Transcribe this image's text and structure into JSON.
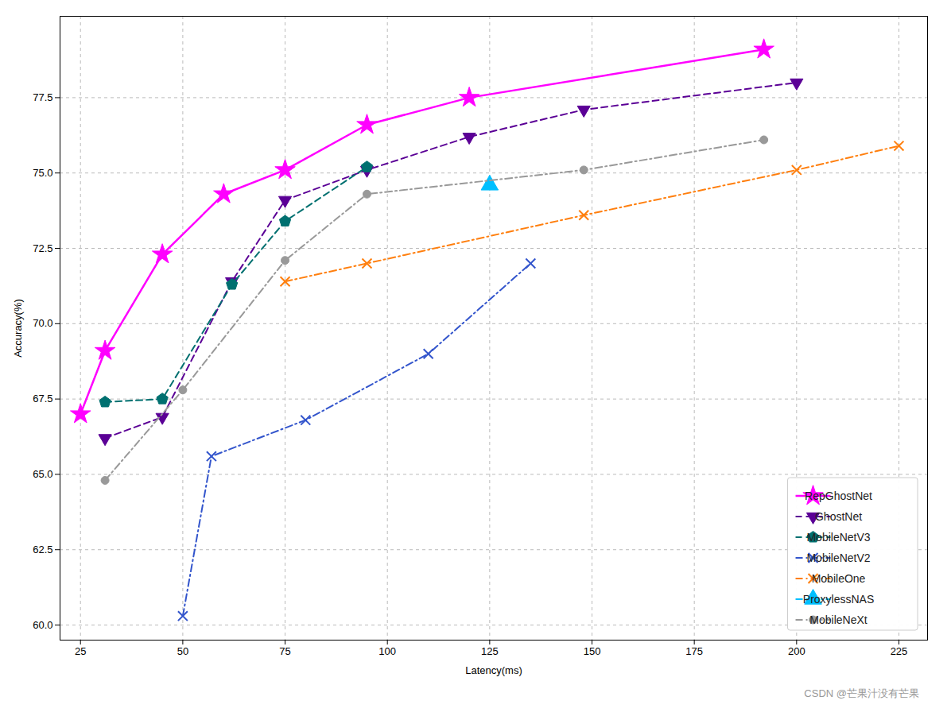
{
  "chart_data": {
    "type": "line",
    "xlabel": "Latency(ms)",
    "ylabel": "Accuracy(%)",
    "xlim": [
      20,
      232
    ],
    "ylim": [
      59.5,
      80.2
    ],
    "xticks": [
      25,
      50,
      75,
      100,
      125,
      150,
      175,
      200,
      225
    ],
    "yticks": [
      {
        "value": 60,
        "label": "60.0"
      },
      62.5,
      {
        "value": 65,
        "label": "65.0"
      },
      67.5,
      {
        "value": 70,
        "label": "70.0"
      },
      72.5,
      {
        "value": 75,
        "label": "75.0"
      },
      77.5
    ],
    "grid": true,
    "legend": "lower right",
    "annotations": [
      "CSDN @芒果汁没有芒果"
    ],
    "series": [
      {
        "name": "RepGhostNet",
        "color": "#ff00ff",
        "marker": "star",
        "line_style": "solid",
        "x": [
          25,
          31,
          45,
          60,
          75,
          95,
          120,
          192
        ],
        "values": [
          67.0,
          69.1,
          72.3,
          74.3,
          75.1,
          76.6,
          77.5,
          79.1
        ]
      },
      {
        "name": "GhostNet",
        "color": "#5b0096",
        "marker": "triangle-down",
        "line_style": "dashed",
        "x": [
          31,
          45,
          62,
          75,
          95,
          120,
          148,
          200
        ],
        "values": [
          66.2,
          66.9,
          71.4,
          74.1,
          75.1,
          76.2,
          77.1,
          78.0
        ]
      },
      {
        "name": "MobileNetV3",
        "color": "#007070",
        "marker": "pentagon",
        "line_style": "dashed",
        "x": [
          31,
          45,
          62,
          75,
          95
        ],
        "values": [
          67.4,
          67.5,
          71.3,
          73.4,
          75.2
        ]
      },
      {
        "name": "MobileNetV2",
        "color": "#3355cc",
        "marker": "x",
        "line_style": "dashdot",
        "x": [
          50,
          57,
          80,
          110,
          135
        ],
        "values": [
          60.3,
          65.6,
          66.8,
          69.0,
          72.0
        ]
      },
      {
        "name": "MobileOne",
        "color": "#ff7f0e",
        "marker": "x",
        "line_style": "dashdot",
        "x": [
          75,
          95,
          148,
          200,
          225
        ],
        "values": [
          71.4,
          72.0,
          73.6,
          75.1,
          75.9
        ]
      },
      {
        "name": "ProxylessNAS",
        "color": "#00bfff",
        "marker": "triangle",
        "line_style": "dashdot",
        "x": [
          125
        ],
        "values": [
          74.6
        ]
      },
      {
        "name": "MobileNeXt",
        "color": "#999999",
        "marker": "circle",
        "line_style": "dashdot",
        "x": [
          31,
          50,
          75,
          95,
          148,
          192
        ],
        "values": [
          64.8,
          67.8,
          72.1,
          74.3,
          75.1,
          76.1
        ]
      }
    ]
  }
}
